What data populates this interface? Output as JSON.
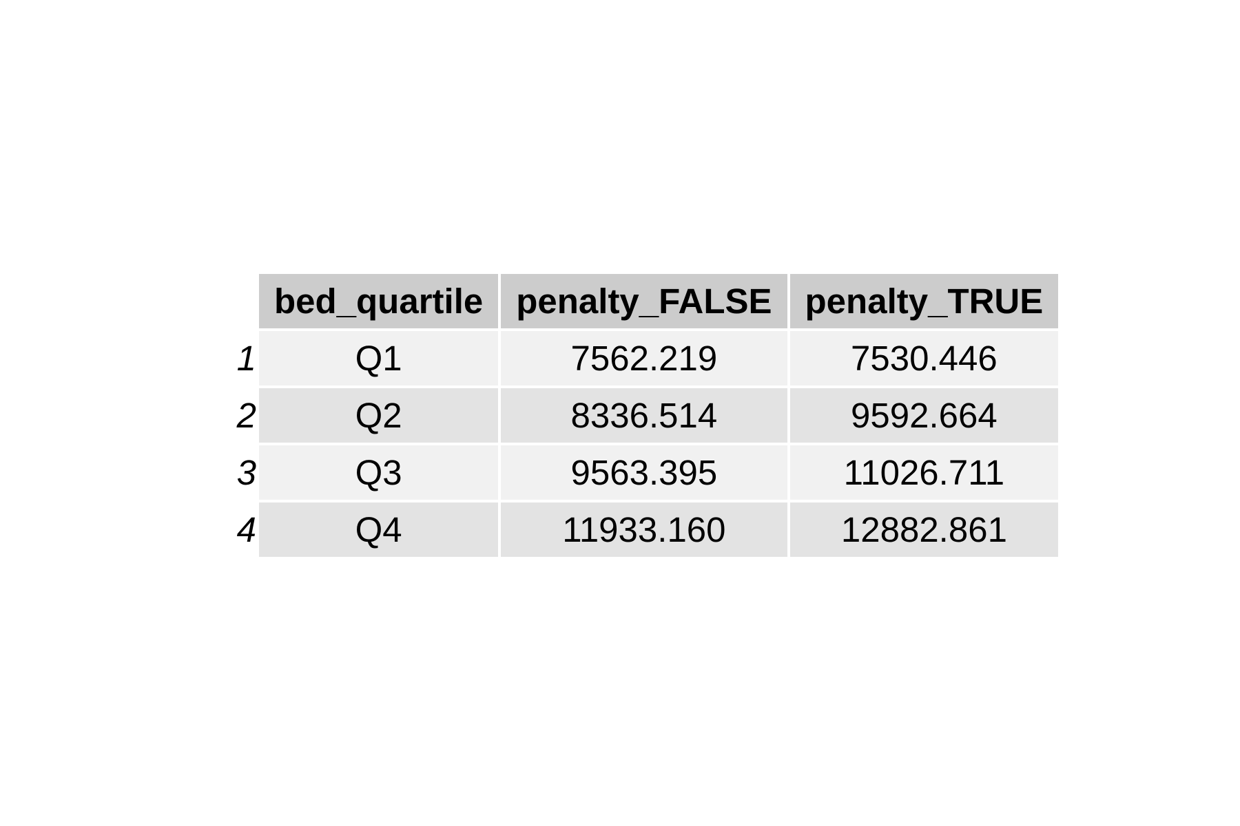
{
  "chart_data": {
    "type": "table",
    "columns": [
      "bed_quartile",
      "penalty_FALSE",
      "penalty_TRUE"
    ],
    "row_names": [
      "1",
      "2",
      "3",
      "4"
    ],
    "rows": [
      [
        "Q1",
        "7562.219",
        "7530.446"
      ],
      [
        "Q2",
        "8336.514",
        "9592.664"
      ],
      [
        "Q3",
        "9563.395",
        "11026.711"
      ],
      [
        "Q4",
        "11933.160",
        "12882.861"
      ]
    ],
    "colors": {
      "header_fill": "#cccccc",
      "row_fill_odd": "#f1f1f1",
      "row_fill_even": "#e3e3e3",
      "background": "#ffffff"
    }
  }
}
